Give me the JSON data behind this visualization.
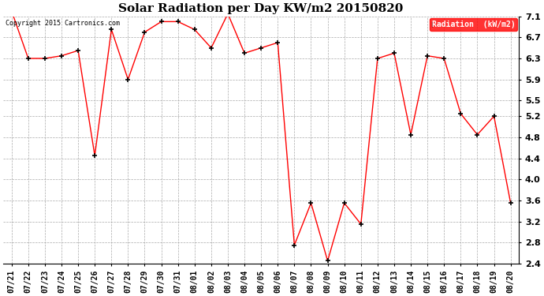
{
  "title": "Solar Radiation per Day KW/m2 20150820",
  "copyright_text": "Copyright 2015 Cartronics.com",
  "legend_label": "Radiation  (kW/m2)",
  "dates": [
    "07/21",
    "07/22",
    "07/23",
    "07/24",
    "07/25",
    "07/26",
    "07/27",
    "07/28",
    "07/29",
    "07/30",
    "07/31",
    "08/01",
    "08/02",
    "08/03",
    "08/04",
    "08/05",
    "08/06",
    "08/07",
    "08/08",
    "08/09",
    "08/10",
    "08/11",
    "08/12",
    "08/13",
    "08/14",
    "08/15",
    "08/16",
    "08/17",
    "08/18",
    "08/19",
    "08/20"
  ],
  "values": [
    7.2,
    6.3,
    6.3,
    6.35,
    6.45,
    4.45,
    6.85,
    5.9,
    6.8,
    7.0,
    7.0,
    6.85,
    6.5,
    7.15,
    6.4,
    6.5,
    6.6,
    2.75,
    3.55,
    2.45,
    3.55,
    3.15,
    6.3,
    6.4,
    4.85,
    6.35,
    6.3,
    5.25,
    4.85,
    5.2,
    3.55
  ],
  "ylim": [
    2.4,
    7.1
  ],
  "yticks": [
    2.4,
    2.8,
    3.2,
    3.6,
    4.0,
    4.4,
    4.8,
    5.2,
    5.5,
    5.9,
    6.3,
    6.7,
    7.1
  ],
  "line_color": "red",
  "marker_color": "black",
  "bg_color": "white",
  "grid_color": "#aaaaaa",
  "title_fontsize": 11,
  "tick_fontsize": 7,
  "ytick_fontsize": 8
}
